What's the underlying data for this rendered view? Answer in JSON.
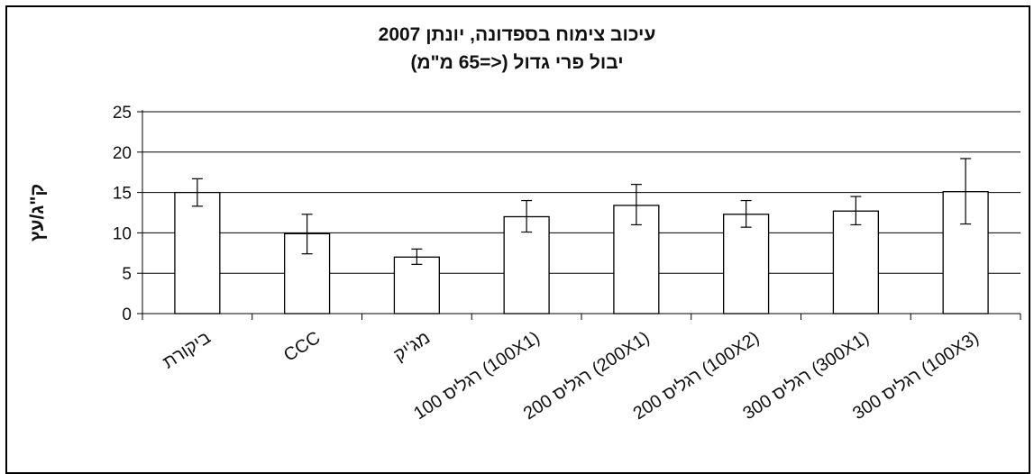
{
  "chart_data": {
    "type": "bar",
    "title": "עיכוב צימוח בספדונה, יונתן 2007",
    "subtitle": "יבול פרי גדול (<=65 מ\"מ)",
    "ylabel": "ק\"ג/עץ",
    "xlabel": "",
    "ylim": [
      0,
      25
    ],
    "yticks": [
      0,
      5,
      10,
      15,
      20,
      25
    ],
    "grid": true,
    "categories": [
      "ביקורת",
      "CCC",
      "מג'יק",
      "רגליס 100 (100X1)",
      "רגליס 200 (200X1)",
      "רגליס 200 (100X2)",
      "רגליס 300 (300X1)",
      "רגליס 300 (100X3)"
    ],
    "values": [
      15.0,
      9.9,
      7.0,
      12.0,
      13.4,
      12.3,
      12.7,
      15.1
    ],
    "error_low": [
      13.3,
      7.4,
      6.1,
      10.1,
      11.0,
      10.7,
      11.0,
      11.1
    ],
    "error_high": [
      16.7,
      12.3,
      8.0,
      14.0,
      16.0,
      14.0,
      14.5,
      19.2
    ],
    "colors": {
      "bar_fill": "#ffffff",
      "bar_stroke": "#000000",
      "grid": "#000000"
    }
  }
}
